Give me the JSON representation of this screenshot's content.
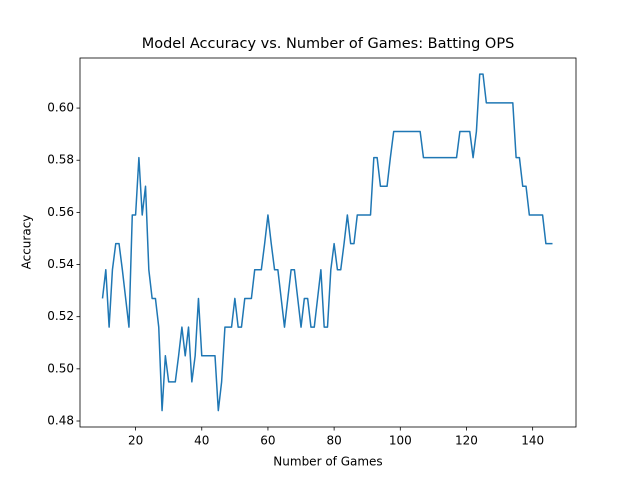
{
  "chart_data": {
    "type": "line",
    "title": "Model Accuracy vs. Number of Games: Batting OPS",
    "x_label": "Number of Games",
    "y_label": "Accuracy",
    "x": [
      10,
      11,
      12,
      13,
      14,
      15,
      16,
      17,
      18,
      19,
      20,
      21,
      22,
      23,
      24,
      25,
      26,
      27,
      28,
      29,
      30,
      31,
      32,
      33,
      34,
      35,
      36,
      37,
      38,
      39,
      40,
      41,
      42,
      43,
      44,
      45,
      46,
      47,
      48,
      49,
      50,
      51,
      52,
      53,
      54,
      55,
      56,
      57,
      58,
      59,
      60,
      61,
      62,
      63,
      64,
      65,
      66,
      67,
      68,
      69,
      70,
      71,
      72,
      73,
      74,
      75,
      76,
      77,
      78,
      79,
      80,
      81,
      82,
      83,
      84,
      85,
      86,
      87,
      88,
      89,
      90,
      91,
      92,
      93,
      94,
      95,
      96,
      97,
      98,
      99,
      100,
      101,
      102,
      103,
      104,
      105,
      106,
      107,
      108,
      109,
      110,
      111,
      112,
      113,
      114,
      115,
      116,
      117,
      118,
      119,
      120,
      121,
      122,
      123,
      124,
      125,
      126,
      127,
      128,
      129,
      130,
      131,
      132,
      133,
      134,
      135,
      136,
      137,
      138,
      139,
      140,
      141,
      142,
      143,
      144,
      145,
      146
    ],
    "series": [
      {
        "name": "Accuracy",
        "color": "#1f77b4",
        "values": [
          0.527,
          0.538,
          0.516,
          0.538,
          0.548,
          0.548,
          0.538,
          0.527,
          0.516,
          0.559,
          0.559,
          0.581,
          0.559,
          0.57,
          0.538,
          0.527,
          0.527,
          0.516,
          0.484,
          0.505,
          0.495,
          0.495,
          0.495,
          0.505,
          0.516,
          0.505,
          0.516,
          0.495,
          0.505,
          0.527,
          0.505,
          0.505,
          0.505,
          0.505,
          0.505,
          0.484,
          0.495,
          0.516,
          0.516,
          0.516,
          0.527,
          0.516,
          0.516,
          0.527,
          0.527,
          0.527,
          0.538,
          0.538,
          0.538,
          0.548,
          0.559,
          0.548,
          0.538,
          0.538,
          0.527,
          0.516,
          0.527,
          0.538,
          0.538,
          0.527,
          0.516,
          0.527,
          0.527,
          0.516,
          0.516,
          0.527,
          0.538,
          0.516,
          0.516,
          0.538,
          0.548,
          0.538,
          0.538,
          0.548,
          0.559,
          0.548,
          0.548,
          0.559,
          0.559,
          0.559,
          0.559,
          0.559,
          0.581,
          0.581,
          0.57,
          0.57,
          0.57,
          0.581,
          0.591,
          0.591,
          0.591,
          0.591,
          0.591,
          0.591,
          0.591,
          0.591,
          0.591,
          0.581,
          0.581,
          0.581,
          0.581,
          0.581,
          0.581,
          0.581,
          0.581,
          0.581,
          0.581,
          0.581,
          0.591,
          0.591,
          0.591,
          0.591,
          0.581,
          0.591,
          0.613,
          0.613,
          0.602,
          0.602,
          0.602,
          0.602,
          0.602,
          0.602,
          0.602,
          0.602,
          0.602,
          0.581,
          0.581,
          0.57,
          0.57,
          0.559,
          0.559,
          0.559,
          0.559,
          0.559,
          0.548,
          0.548,
          0.548
        ]
      }
    ],
    "xlim": [
      3.2,
      153.1
    ],
    "ylim": [
      0.4777,
      0.6192
    ],
    "xticks": [
      20,
      40,
      60,
      80,
      100,
      120,
      140
    ],
    "yticks": [
      0.48,
      {
        "value": 0.5,
        "label": "0.50"
      },
      0.52,
      0.54,
      0.56,
      0.58,
      {
        "value": 0.6,
        "label": "0.60"
      }
    ],
    "grid": false
  }
}
